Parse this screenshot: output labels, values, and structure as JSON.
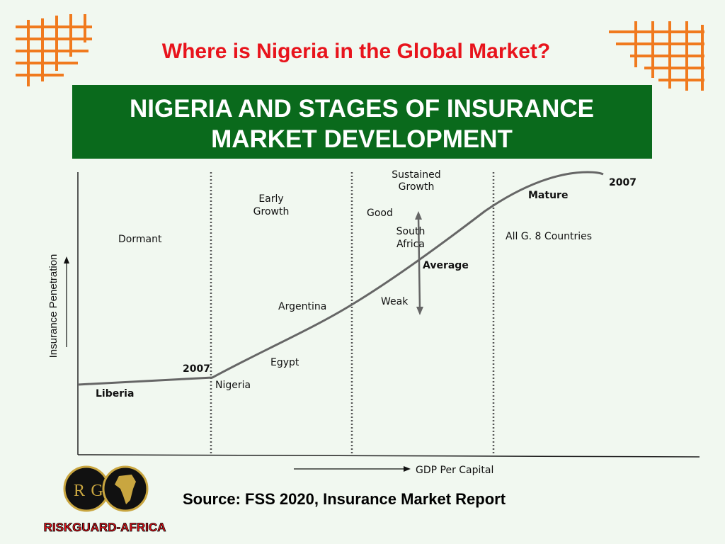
{
  "header": {
    "title": "Where is Nigeria in the Global Market?"
  },
  "banner": {
    "lines": [
      "NIGERIA AND STAGES OF INSURANCE",
      "MARKET DEVELOPMENT"
    ]
  },
  "diagram": {
    "y_axis_label": "Insurance Penetration",
    "x_axis_label": "GDP Per Capital",
    "stages": {
      "dormant": "Dormant",
      "early_growth": [
        "Early",
        "Growth"
      ],
      "sustained_growth": [
        "Sustained",
        "Growth"
      ],
      "mature": "Mature"
    },
    "labels": {
      "good": "Good",
      "south_africa": [
        "South",
        "Africa"
      ],
      "average": "Average",
      "weak": "Weak",
      "g8": "All G. 8 Countries",
      "year_top": "2007",
      "argentina": "Argentina",
      "egypt": "Egypt",
      "year_bottom": "2007",
      "nigeria": "Nigeria",
      "liberia": "Liberia"
    }
  },
  "source": "Source: FSS 2020, Insurance Market Report",
  "logo": {
    "initials": [
      "R",
      "G"
    ],
    "name": "RISKGUARD-AFRICA"
  }
}
